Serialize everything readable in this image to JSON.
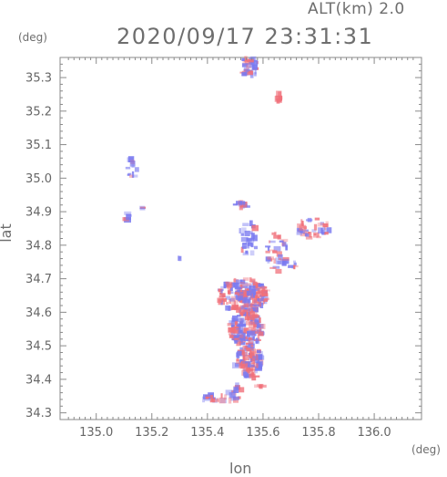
{
  "header": {
    "alt_label": "ALT(km) 2.0",
    "timestamp": "2020/09/17 23:31:31"
  },
  "chart_data": {
    "type": "heatmap",
    "title": "2020/09/17 23:31:31",
    "xlabel": "lon",
    "ylabel": "lat",
    "x_unit": "(deg)",
    "y_unit": "(deg)",
    "xlim": [
      134.87,
      136.17
    ],
    "ylim": [
      34.28,
      35.36
    ],
    "x_ticks": [
      135.0,
      135.2,
      135.4,
      135.6,
      135.8,
      136.0
    ],
    "x_tick_labels": [
      "135.0",
      "135.2",
      "135.4",
      "135.6",
      "135.8",
      "136.0"
    ],
    "y_ticks": [
      34.3,
      34.4,
      34.5,
      34.6,
      34.7,
      34.8,
      34.9,
      35.0,
      35.1,
      35.2,
      35.3
    ],
    "y_tick_labels": [
      "34.3",
      "34.4",
      "34.5",
      "34.6",
      "34.7",
      "34.8",
      "34.9",
      "35.0",
      "35.1",
      "35.2",
      "35.3"
    ],
    "colors": {
      "positive": "#f0707a",
      "negative": "#7a7af0"
    },
    "clusters": [
      {
        "lon": 135.55,
        "lat": 35.33,
        "rlon": 0.035,
        "rlat": 0.03,
        "n": 30,
        "pos": 0.5
      },
      {
        "lon": 135.66,
        "lat": 35.24,
        "rlon": 0.012,
        "rlat": 0.012,
        "n": 10,
        "pos": 0.8
      },
      {
        "lon": 135.13,
        "lat": 35.03,
        "rlon": 0.02,
        "rlat": 0.03,
        "n": 12,
        "pos": 0.1
      },
      {
        "lon": 135.11,
        "lat": 34.89,
        "rlon": 0.01,
        "rlat": 0.02,
        "n": 6,
        "pos": 0.1
      },
      {
        "lon": 135.17,
        "lat": 34.91,
        "rlon": 0.006,
        "rlat": 0.006,
        "n": 3,
        "pos": 0.1
      },
      {
        "lon": 135.3,
        "lat": 34.76,
        "rlon": 0.004,
        "rlat": 0.01,
        "n": 3,
        "pos": 0.2
      },
      {
        "lon": 135.52,
        "lat": 34.92,
        "rlon": 0.025,
        "rlat": 0.01,
        "n": 14,
        "pos": 0.4
      },
      {
        "lon": 135.55,
        "lat": 34.82,
        "rlon": 0.04,
        "rlat": 0.05,
        "n": 28,
        "pos": 0.3
      },
      {
        "lon": 135.65,
        "lat": 34.78,
        "rlon": 0.04,
        "rlat": 0.06,
        "n": 40,
        "pos": 0.5
      },
      {
        "lon": 135.78,
        "lat": 34.85,
        "rlon": 0.06,
        "rlat": 0.03,
        "n": 40,
        "pos": 0.55
      },
      {
        "lon": 135.71,
        "lat": 34.74,
        "rlon": 0.01,
        "rlat": 0.01,
        "n": 6,
        "pos": 0.7
      },
      {
        "lon": 135.53,
        "lat": 34.65,
        "rlon": 0.09,
        "rlat": 0.05,
        "n": 200,
        "pos": 0.55
      },
      {
        "lon": 135.54,
        "lat": 34.55,
        "rlon": 0.06,
        "rlat": 0.05,
        "n": 150,
        "pos": 0.5
      },
      {
        "lon": 135.55,
        "lat": 34.45,
        "rlon": 0.05,
        "rlat": 0.05,
        "n": 100,
        "pos": 0.5
      },
      {
        "lon": 135.5,
        "lat": 34.37,
        "rlon": 0.03,
        "rlat": 0.015,
        "n": 12,
        "pos": 0.4
      },
      {
        "lon": 135.45,
        "lat": 34.345,
        "rlon": 0.08,
        "rlat": 0.01,
        "n": 25,
        "pos": 0.35
      },
      {
        "lon": 135.59,
        "lat": 34.38,
        "rlon": 0.015,
        "rlat": 0.01,
        "n": 5,
        "pos": 0.8
      }
    ]
  }
}
